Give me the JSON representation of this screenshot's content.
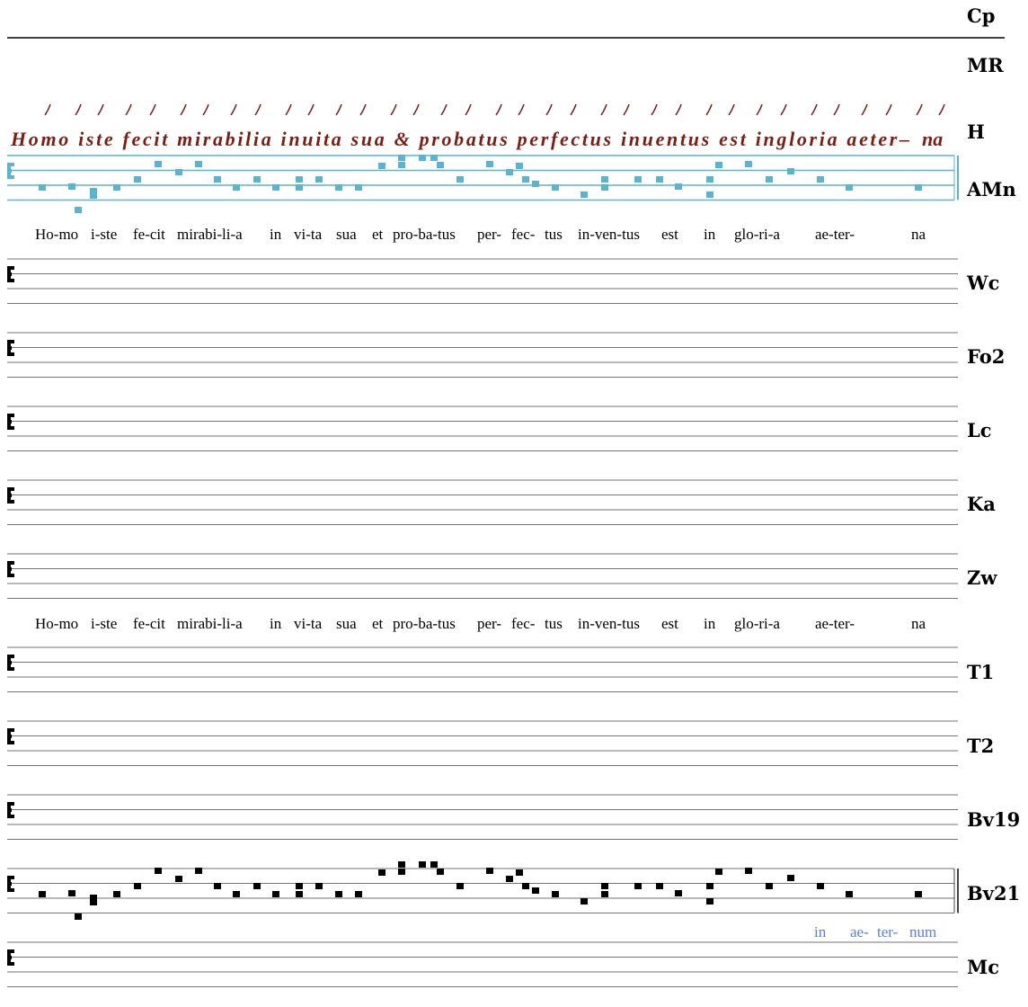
{
  "labels": [
    "Cp",
    "MR",
    "H",
    "AMn",
    "Wc",
    "Fo2",
    "Lc",
    "Ka",
    "Zw",
    "T1",
    "T2",
    "Bv19",
    "Bv21",
    "Mc"
  ],
  "manuscript": {
    "text": "Homo iste fecit mirabilia inuita sua & probatus perfectus inuentus est ingloria aeter–",
    "last": "na"
  },
  "lyrics": [
    "Ho-mo",
    "i-ste",
    "fe-cit",
    "mirabi-li-a",
    "in",
    "vi-ta",
    "sua",
    "et",
    "pro-ba-tus",
    "per-",
    "fec-",
    "tus",
    "in-ven-tus",
    "est",
    "in",
    "glo-ri-a",
    "ae-ter-",
    "na"
  ],
  "variant_lyrics": [
    "in",
    "ae-",
    "ter-",
    "num"
  ]
}
